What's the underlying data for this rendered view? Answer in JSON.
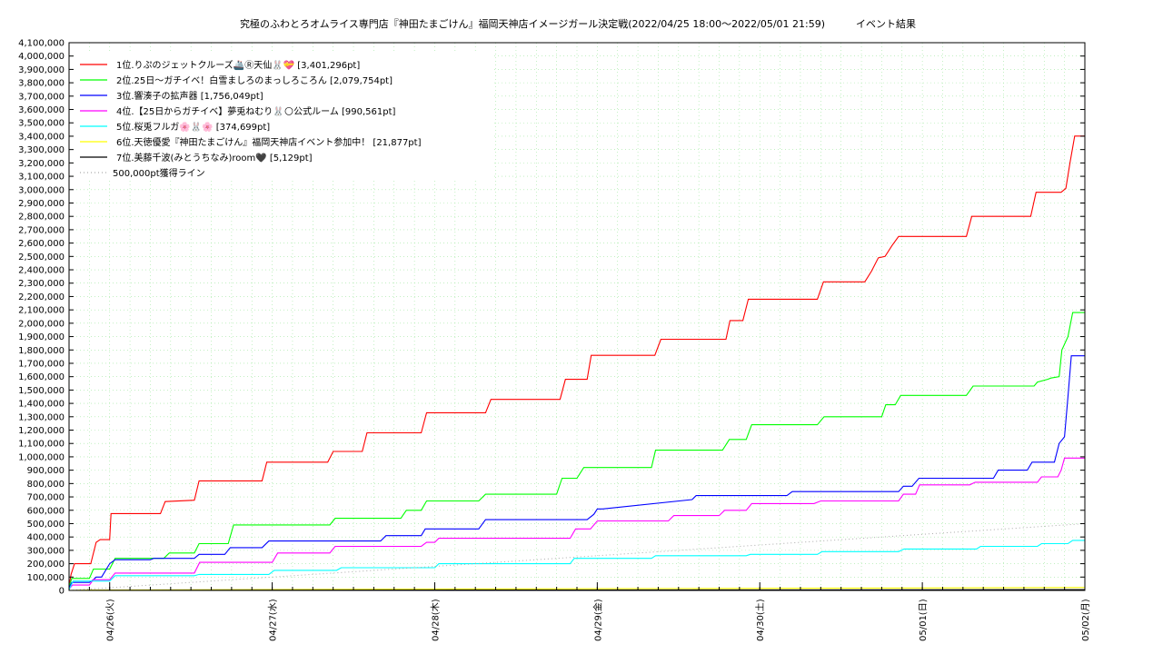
{
  "chart_data": {
    "type": "line",
    "title": "究極のふわとろオムライス専門店『神田たまごけん』福岡天神店イメージガール決定戦(2022/04/25 18:00～2022/05/01 21:59)",
    "subtitle": "イベント結果",
    "ylim": [
      0,
      4100000
    ],
    "xlim": [
      "2022-04-25 18:00",
      "2022-05-02 00:00"
    ],
    "y_tick_labels": [
      "0",
      "100,000",
      "200,000",
      "300,000",
      "400,000",
      "500,000",
      "600,000",
      "700,000",
      "800,000",
      "900,000",
      "1,000,000",
      "1,100,000",
      "1,200,000",
      "1,300,000",
      "1,400,000",
      "1,500,000",
      "1,600,000",
      "1,700,000",
      "1,800,000",
      "1,900,000",
      "2,000,000",
      "2,100,000",
      "2,200,000",
      "2,300,000",
      "2,400,000",
      "2,500,000",
      "2,600,000",
      "2,700,000",
      "2,800,000",
      "2,900,000",
      "3,000,000",
      "3,100,000",
      "3,200,000",
      "3,300,000",
      "3,400,000",
      "3,500,000",
      "3,600,000",
      "3,700,000",
      "3,800,000",
      "3,900,000",
      "4,000,000",
      "4,100,000"
    ],
    "x_tick_labels": [
      "04/26(火)",
      "04/27(水)",
      "04/28(木)",
      "04/29(金)",
      "04/30(土)",
      "05/01(日)",
      "05/02(月)"
    ],
    "x_tick_hours": [
      6,
      30,
      54,
      78,
      102,
      126,
      150
    ],
    "grid": true,
    "legend_placement": "top-left",
    "series": [
      {
        "name": "1位.りぷのジェットクルーズ🚢Ⓡ天仙🐰💝 [3,401,296pt]",
        "color": "#ff0000",
        "x": [
          0,
          0.3,
          0.8,
          3.2,
          4,
          4.6,
          6,
          6.2,
          13.5,
          14.2,
          18.5,
          19.2,
          28.5,
          29.2,
          38.2,
          39,
          43.3,
          44,
          52,
          52.8,
          61.5,
          62.3,
          72.5,
          73.3,
          76.5,
          77.1,
          86.5,
          87.4,
          97,
          97.6,
          99.5,
          100.3,
          110.5,
          111.4,
          117.5,
          118.5,
          119.5,
          120.5,
          121.5,
          122.5,
          132.5,
          133.3,
          142,
          142.8,
          146.5,
          147.2,
          147.8,
          148.5,
          150
        ],
        "y": [
          30000,
          120000,
          200000,
          200000,
          360000,
          380000,
          380000,
          575000,
          575000,
          665000,
          675000,
          820000,
          820000,
          960000,
          960000,
          1040000,
          1040000,
          1180000,
          1180000,
          1330000,
          1330000,
          1430000,
          1430000,
          1580000,
          1580000,
          1760000,
          1760000,
          1880000,
          1880000,
          2020000,
          2020000,
          2180000,
          2180000,
          2310000,
          2310000,
          2390000,
          2490000,
          2500000,
          2580000,
          2650000,
          2650000,
          2800000,
          2800000,
          2980000,
          2980000,
          3010000,
          3200000,
          3401296,
          3401296
        ]
      },
      {
        "name": "2位.25日〜ガチイベ！白雪ましろのまっしろころん [2,079,754pt]",
        "color": "#00ff00",
        "x": [
          0,
          0.4,
          3,
          3.6,
          6,
          6.8,
          14,
          14.8,
          18.5,
          19.2,
          23.5,
          24.3,
          38.5,
          39.3,
          49,
          49.8,
          52,
          52.8,
          60.5,
          61.5,
          72,
          72.8,
          75,
          76,
          86,
          86.6,
          96.5,
          97.5,
          100,
          100.8,
          110.5,
          111.5,
          120,
          120.6,
          122,
          122.8,
          132.5,
          133.5,
          142.5,
          143,
          144.5,
          145,
          146.2,
          146.6,
          147.5,
          148.2,
          150
        ],
        "y": [
          30000,
          90000,
          90000,
          160000,
          160000,
          240000,
          240000,
          280000,
          280000,
          350000,
          350000,
          490000,
          490000,
          540000,
          540000,
          600000,
          600000,
          670000,
          670000,
          720000,
          720000,
          840000,
          840000,
          920000,
          920000,
          1050000,
          1050000,
          1130000,
          1130000,
          1240000,
          1240000,
          1300000,
          1300000,
          1390000,
          1390000,
          1460000,
          1460000,
          1530000,
          1530000,
          1560000,
          1580000,
          1590000,
          1600000,
          1800000,
          1900000,
          2079754,
          2079754
        ]
      },
      {
        "name": "3位.響湊子の拡声器 [1,756,049pt]",
        "color": "#0000ff",
        "x": [
          0,
          0.4,
          3,
          3.6,
          4,
          4.8,
          6,
          6.8,
          12,
          12.5,
          18.5,
          19.2,
          23,
          23.8,
          28.5,
          29.5,
          46,
          46.8,
          52,
          52.6,
          60.5,
          61.5,
          76.5,
          77.5,
          78,
          78.8,
          92,
          92.6,
          106,
          106.8,
          122.5,
          123.2,
          124.5,
          125.5,
          136.5,
          137.2,
          141.5,
          142.2,
          145.5,
          146.2,
          147,
          147.5,
          148,
          150
        ],
        "y": [
          20000,
          60000,
          60000,
          80000,
          100000,
          100000,
          200000,
          230000,
          230000,
          240000,
          240000,
          270000,
          270000,
          320000,
          320000,
          370000,
          370000,
          410000,
          410000,
          460000,
          460000,
          530000,
          530000,
          570000,
          610000,
          610000,
          680000,
          710000,
          710000,
          740000,
          740000,
          780000,
          780000,
          840000,
          840000,
          900000,
          900000,
          960000,
          960000,
          1100000,
          1150000,
          1450000,
          1756049,
          1756049
        ]
      },
      {
        "name": "4位.【25日からガチイベ】夢兎ねむり🐰🌕公式ルーム [990,561pt]",
        "color": "#ff00ff",
        "x": [
          0,
          0.5,
          3,
          3.6,
          6,
          6.8,
          18.5,
          19.3,
          30,
          30.8,
          38.5,
          39.3,
          52,
          52.8,
          54,
          54.6,
          74,
          74.8,
          77,
          78,
          88.5,
          89.3,
          96,
          96.8,
          100,
          100.8,
          110,
          111,
          122.5,
          123.2,
          125,
          125.6,
          133,
          133.8,
          143,
          143.6,
          146,
          146.5,
          147,
          150
        ],
        "y": [
          10000,
          40000,
          40000,
          80000,
          80000,
          130000,
          130000,
          210000,
          210000,
          280000,
          280000,
          330000,
          330000,
          360000,
          360000,
          390000,
          390000,
          460000,
          460000,
          520000,
          520000,
          560000,
          560000,
          600000,
          600000,
          650000,
          650000,
          670000,
          670000,
          720000,
          720000,
          790000,
          790000,
          810000,
          810000,
          850000,
          850000,
          900000,
          990561,
          990561
        ]
      },
      {
        "name": "5位.桜兎フルガ🌸🐰🌸 [374,699pt]",
        "color": "#00ffff",
        "x": [
          0,
          0.6,
          6,
          6.8,
          18.5,
          19.2,
          29.5,
          30.3,
          39.5,
          40.2,
          54,
          54.6,
          74,
          74.6,
          86,
          86.6,
          100,
          100.6,
          110.5,
          111.2,
          122.5,
          123.3,
          134,
          134.6,
          143,
          143.6,
          147.5,
          148.2,
          150
        ],
        "y": [
          5000,
          70000,
          70000,
          110000,
          110000,
          120000,
          120000,
          150000,
          150000,
          170000,
          170000,
          200000,
          200000,
          240000,
          240000,
          260000,
          260000,
          270000,
          270000,
          290000,
          290000,
          310000,
          310000,
          330000,
          330000,
          350000,
          350000,
          374699,
          374699
        ]
      },
      {
        "name": "6位.天徳優愛『神田たまごけん』福岡天神店イベント参加中！ [21,877pt]",
        "color": "#ffff00",
        "x": [
          0,
          3,
          40,
          80,
          120,
          149,
          150
        ],
        "y": [
          0,
          3000,
          8000,
          13000,
          18000,
          21877,
          21877
        ]
      },
      {
        "name": "7位.美藤千波(みとうちなみ)room🖤 [5,129pt]",
        "color": "#000000",
        "x": [
          0,
          10,
          60,
          110,
          149,
          150
        ],
        "y": [
          0,
          1000,
          2500,
          4000,
          5129,
          5129
        ]
      },
      {
        "name": "500,000pt獲得ライン",
        "color": "#aaaaaa",
        "dotted": true,
        "x": [
          0,
          150
        ],
        "y": [
          0,
          500000
        ]
      }
    ]
  }
}
